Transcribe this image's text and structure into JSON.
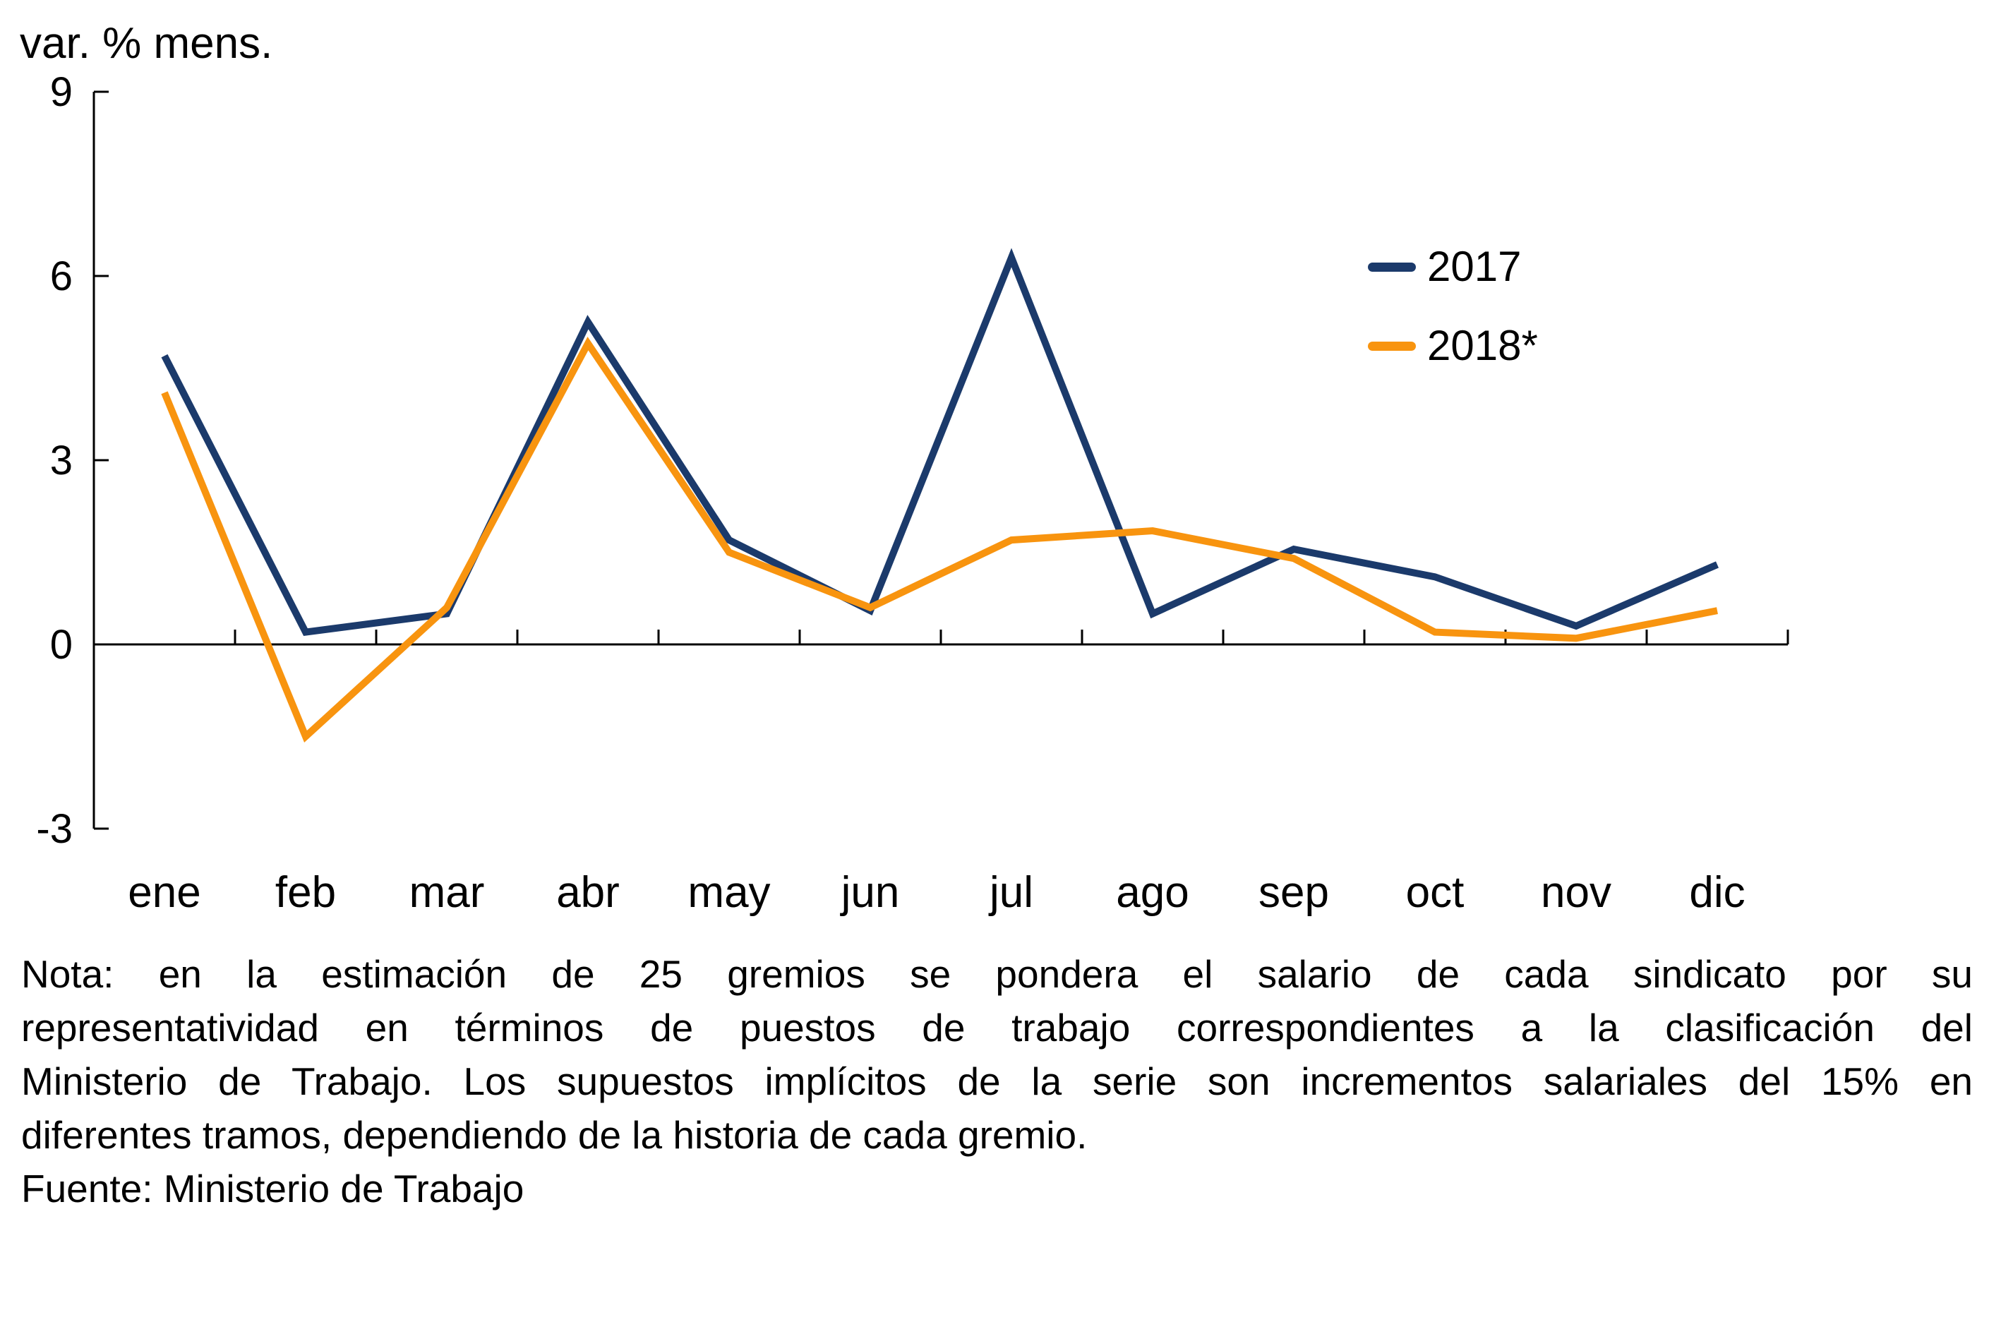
{
  "ylabel": "var. % mens.",
  "chart_data": {
    "type": "line",
    "categories": [
      "ene",
      "feb",
      "mar",
      "abr",
      "may",
      "jun",
      "jul",
      "ago",
      "sep",
      "oct",
      "nov",
      "dic"
    ],
    "series": [
      {
        "name": "2017",
        "color": "#1B3A6B",
        "values": [
          4.7,
          0.2,
          0.5,
          5.25,
          1.7,
          0.55,
          6.3,
          0.5,
          1.55,
          1.1,
          0.3,
          1.3
        ]
      },
      {
        "name": "2018*",
        "color": "#F8940F",
        "values": [
          4.1,
          -1.5,
          0.6,
          4.9,
          1.5,
          0.6,
          1.7,
          1.85,
          1.4,
          0.2,
          0.1,
          0.55
        ]
      }
    ],
    "title": "",
    "xlabel": "",
    "ylabel": "var. % mens.",
    "ylim": [
      -3,
      9
    ],
    "yticks": [
      9,
      6,
      3,
      0,
      -3
    ],
    "grid": false,
    "legend_position": "upper right"
  },
  "note": {
    "lines": [
      "Nota: en la estimación de 25 gremios se pondera el salario de cada sindicato por su",
      "representatividad en términos de puestos de trabajo correspondientes a la clasificación del",
      "Ministerio de Trabajo. Los supuestos implícitos de la serie son incrementos salariales del 15% en",
      "diferentes tramos, dependiendo de la historia de cada gremio."
    ]
  },
  "fuente": "Fuente: Ministerio de Trabajo",
  "colors": {
    "axis": "#000000",
    "text": "#000000",
    "series_2017": "#1B3A6B",
    "series_2018": "#F8940F"
  }
}
